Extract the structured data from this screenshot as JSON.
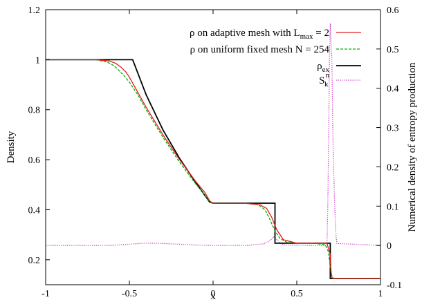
{
  "chart_data": {
    "type": "line",
    "xlabel": "x",
    "ylabel": "Density",
    "y2label": "Numerical density of entropy production",
    "xlim": [
      -1,
      1
    ],
    "ylim": [
      0.1,
      1.2
    ],
    "y2lim": [
      -0.1,
      0.6
    ],
    "x_ticks": [
      "-1",
      "-0.5",
      "0",
      "0.5",
      "1"
    ],
    "y_ticks": [
      "0.2",
      "0.4",
      "0.6",
      "0.8",
      "1",
      "1.2"
    ],
    "y2_ticks": [
      "-0.1",
      "0",
      "0.1",
      "0.2",
      "0.3",
      "0.4",
      "0.5",
      "0.6"
    ],
    "legend_position": "top-right",
    "series": [
      {
        "name": "ρ on adaptive mesh with L_max = 2",
        "legend_main": "ρ on adaptive mesh with L",
        "legend_sub": "max",
        "legend_tail": " =  2",
        "color": "#e41a1c",
        "style": "solid",
        "axis": "left",
        "x": [
          -1,
          -0.7,
          -0.62,
          -0.58,
          -0.55,
          -0.52,
          -0.5,
          -0.45,
          -0.4,
          -0.3,
          -0.2,
          -0.1,
          -0.05,
          -0.02,
          0.0,
          0.2,
          0.28,
          0.32,
          0.35,
          0.38,
          0.42,
          0.5,
          0.6,
          0.68,
          0.7,
          0.705,
          0.71,
          0.72,
          1.0
        ],
        "y": [
          1.0,
          1.0,
          0.995,
          0.985,
          0.97,
          0.95,
          0.93,
          0.87,
          0.81,
          0.7,
          0.6,
          0.51,
          0.47,
          0.435,
          0.425,
          0.425,
          0.42,
          0.405,
          0.37,
          0.32,
          0.28,
          0.266,
          0.266,
          0.266,
          0.22,
          0.15,
          0.128,
          0.125,
          0.125
        ]
      },
      {
        "name": "ρ on  uniform fixed mesh N =  254",
        "legend_main": "ρ on  uniform fixed mesh N =  254",
        "color": "#00b000",
        "style": "dashed",
        "axis": "left",
        "x": [
          -1,
          -0.7,
          -0.63,
          -0.59,
          -0.56,
          -0.53,
          -0.5,
          -0.45,
          -0.4,
          -0.3,
          -0.2,
          -0.1,
          -0.05,
          -0.02,
          0.0,
          0.2,
          0.27,
          0.31,
          0.34,
          0.37,
          0.4,
          0.44,
          0.5,
          0.6,
          0.67,
          0.69,
          0.7,
          0.71,
          0.72,
          1.0
        ],
        "y": [
          1.0,
          1.0,
          0.99,
          0.975,
          0.955,
          0.935,
          0.91,
          0.86,
          0.8,
          0.69,
          0.59,
          0.5,
          0.46,
          0.432,
          0.425,
          0.425,
          0.42,
          0.4,
          0.36,
          0.315,
          0.285,
          0.27,
          0.266,
          0.266,
          0.26,
          0.23,
          0.17,
          0.135,
          0.126,
          0.125
        ]
      },
      {
        "name": "ρ_ex",
        "legend_main": "ρ",
        "legend_sub": "ex",
        "color": "#000000",
        "style": "solid",
        "axis": "left",
        "x": [
          -1,
          -0.48,
          -0.4,
          -0.3,
          -0.2,
          -0.1,
          -0.02,
          0.0,
          0.37,
          0.37,
          0.7,
          0.7,
          1.0
        ],
        "y": [
          1.0,
          1.0,
          0.86,
          0.72,
          0.605,
          0.505,
          0.43,
          0.426,
          0.426,
          0.266,
          0.266,
          0.125,
          0.125
        ]
      },
      {
        "name": "S_k^n",
        "legend_main": "S",
        "legend_sub": "k",
        "legend_sup": "n",
        "color": "#cc44cc",
        "style": "dotted",
        "axis": "right",
        "x": [
          -1,
          -0.6,
          -0.5,
          -0.4,
          -0.3,
          -0.2,
          -0.1,
          0.0,
          0.2,
          0.3,
          0.34,
          0.36,
          0.38,
          0.4,
          0.43,
          0.6,
          0.66,
          0.68,
          0.685,
          0.69,
          0.695,
          0.7,
          0.705,
          0.71,
          0.715,
          0.72,
          0.725,
          0.73,
          0.735,
          0.74,
          1.0
        ],
        "y": [
          0.0,
          0.0,
          0.003,
          0.006,
          0.005,
          0.003,
          0.001,
          0.0,
          0.0,
          0.004,
          0.012,
          0.022,
          0.015,
          0.006,
          0.001,
          0.0,
          0.0,
          0.002,
          0.1,
          0.26,
          0.47,
          0.565,
          0.51,
          0.47,
          0.3,
          0.2,
          0.12,
          0.06,
          0.02,
          0.005,
          0.0
        ]
      }
    ]
  }
}
